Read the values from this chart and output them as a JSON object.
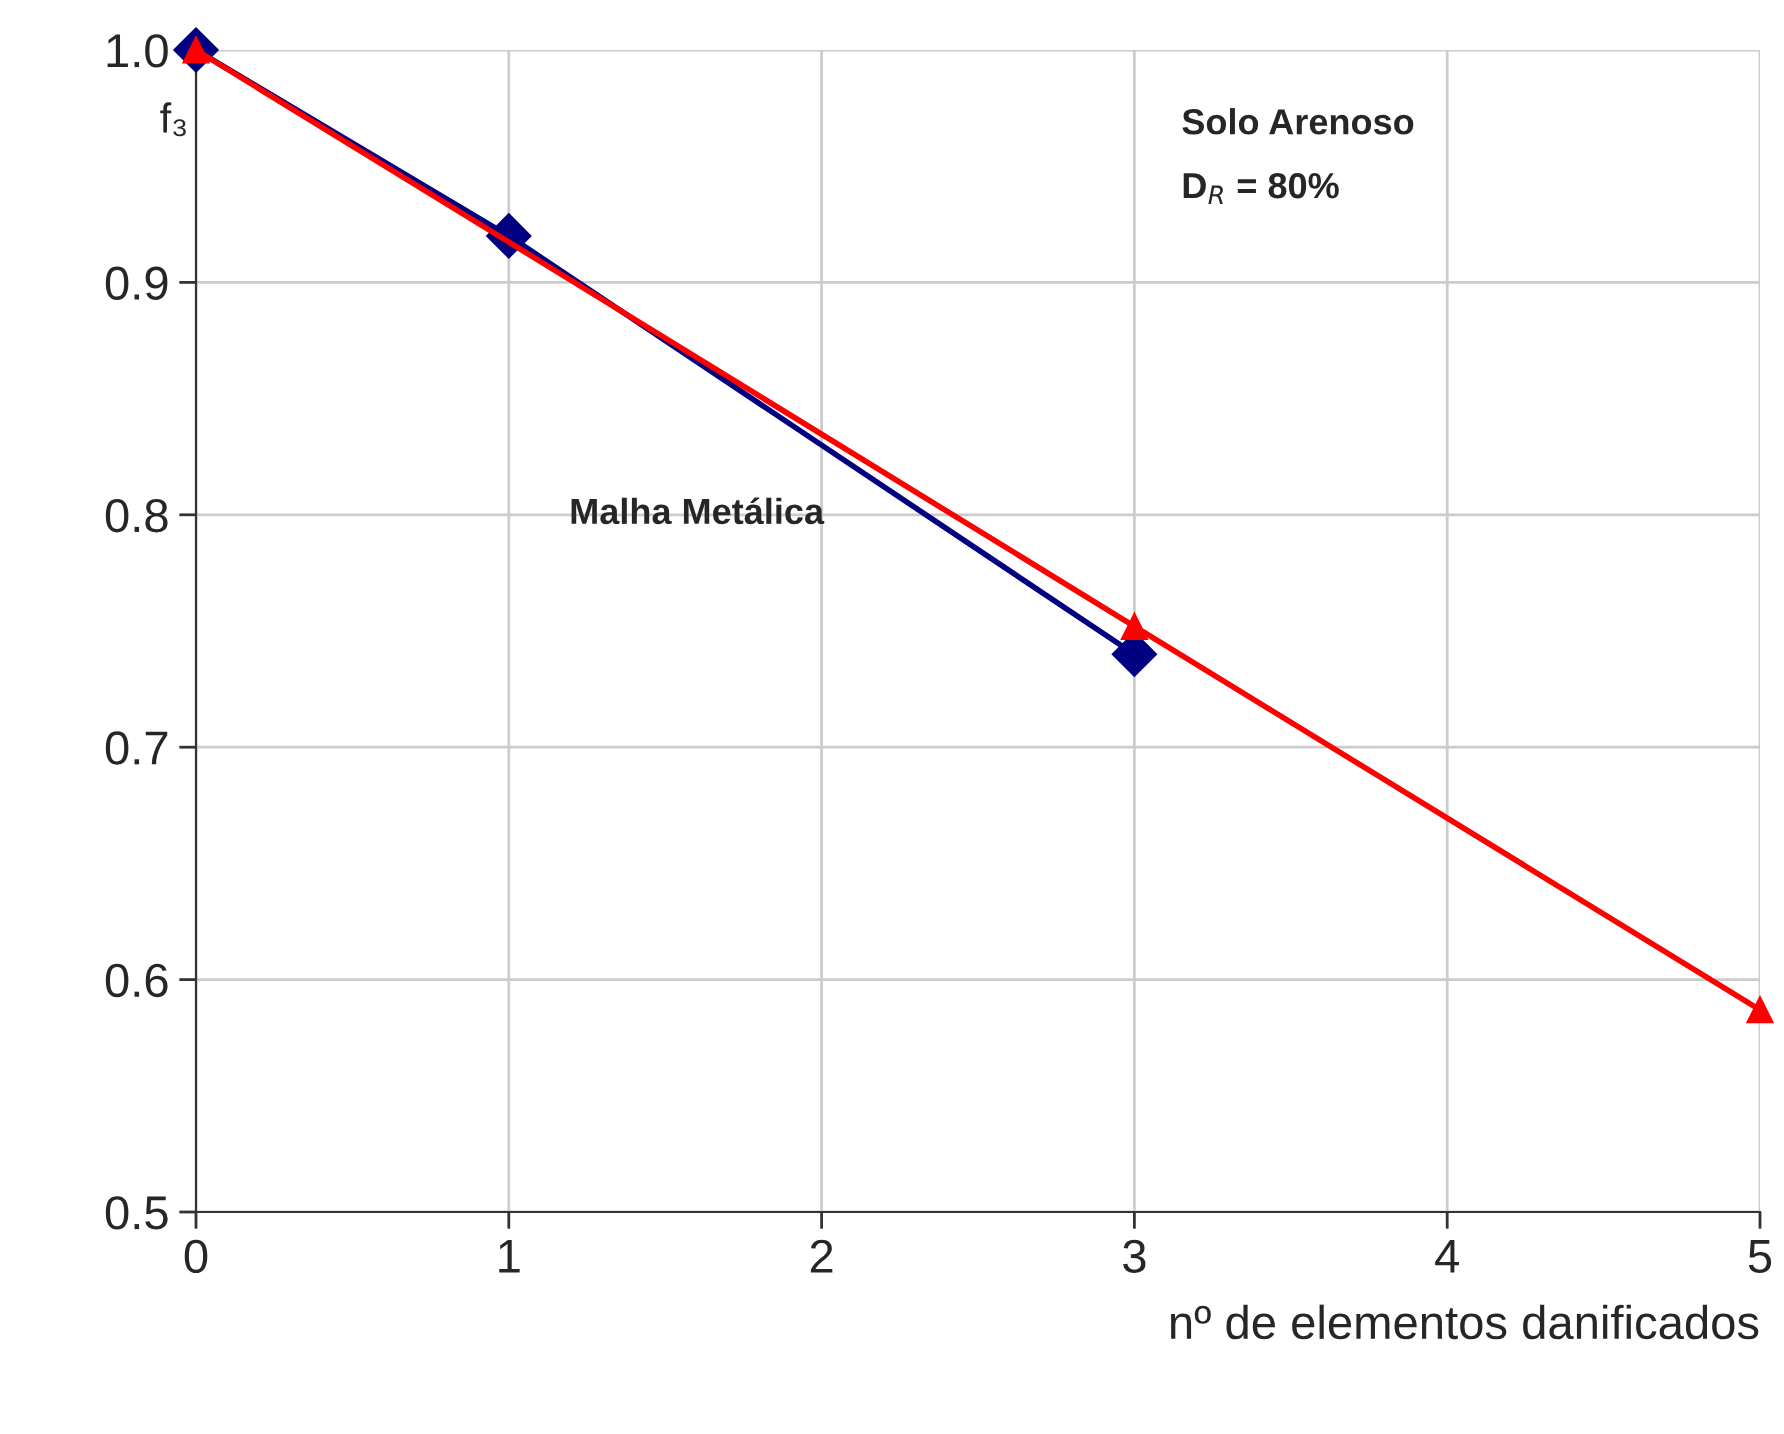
{
  "chart_data": {
    "type": "line",
    "xlabel": "nº de elementos danificados",
    "ylabel": "f₃",
    "annotations": [
      "Solo Arenoso",
      "D$_{R}$ = 80%"
    ],
    "series": [
      {
        "name": "Malha Metálica",
        "color": "#000080",
        "x": [
          0,
          1,
          3
        ],
        "values": [
          1.0,
          0.92,
          0.74
        ],
        "marker": "diamond"
      },
      {
        "color": "#ff0000",
        "x": [
          0,
          3,
          5
        ],
        "values": [
          1.0,
          0.752,
          0.587
        ],
        "marker": "triangle"
      }
    ],
    "xlim": [
      0,
      5
    ],
    "xticks": [
      0,
      1,
      2,
      3,
      4,
      5
    ],
    "ylim": [
      0.5,
      1.0
    ],
    "yticks": [
      0.5,
      0.6,
      0.7,
      0.8,
      0.9,
      {
        "value": 1.0,
        "label": "1.0"
      }
    ],
    "grid": true,
    "legend": false,
    "line_style": "solid"
  }
}
